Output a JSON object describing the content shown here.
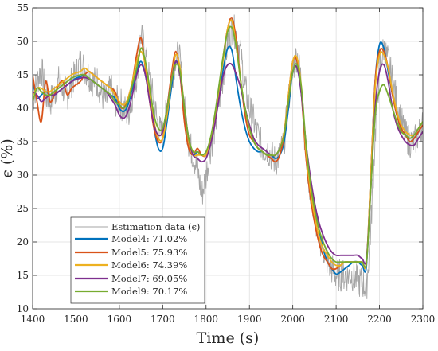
{
  "chart_data": {
    "type": "line",
    "xlabel": "Time (s)",
    "ylabel": "ϵ (%)",
    "xlim": [
      1400,
      2300
    ],
    "ylim": [
      10,
      55
    ],
    "xticks": [
      "1400",
      "1500",
      "1600",
      "1700",
      "1800",
      "1900",
      "2000",
      "2100",
      "2200",
      "2300"
    ],
    "yticks": [
      "10",
      "15",
      "20",
      "25",
      "30",
      "35",
      "40",
      "45",
      "50",
      "55"
    ],
    "grid": true,
    "legend_position": "bottom-left",
    "series": [
      {
        "name": "Estimation data (ϵ)",
        "color": "#a6a6a6",
        "style": "noisy",
        "x": [
          1400,
          1410,
          1420,
          1430,
          1440,
          1450,
          1460,
          1470,
          1480,
          1490,
          1500,
          1510,
          1520,
          1530,
          1540,
          1550,
          1560,
          1570,
          1580,
          1590,
          1600,
          1610,
          1620,
          1630,
          1640,
          1650,
          1660,
          1670,
          1680,
          1690,
          1700,
          1710,
          1720,
          1730,
          1740,
          1750,
          1760,
          1770,
          1780,
          1790,
          1800,
          1810,
          1820,
          1830,
          1840,
          1850,
          1860,
          1870,
          1880,
          1890,
          1900,
          1910,
          1920,
          1930,
          1940,
          1950,
          1960,
          1970,
          1980,
          1990,
          2000,
          2010,
          2020,
          2030,
          2040,
          2050,
          2060,
          2070,
          2080,
          2090,
          2100,
          2110,
          2120,
          2130,
          2140,
          2150,
          2160,
          2170,
          2180,
          2190,
          2200,
          2210,
          2220,
          2230,
          2240,
          2250,
          2260,
          2270,
          2280,
          2290,
          2300
        ],
        "y": [
          41,
          44,
          46,
          42,
          41,
          42,
          44,
          43,
          42,
          44,
          45,
          47,
          46,
          45,
          44,
          44,
          42,
          41,
          43,
          41,
          41,
          40,
          39,
          42,
          45,
          51,
          48,
          44,
          41,
          37,
          36,
          40,
          44,
          48,
          47,
          40,
          35,
          33,
          31,
          27,
          30,
          34,
          37,
          41,
          45,
          50,
          52,
          51,
          48,
          43,
          40,
          38,
          36,
          34,
          34,
          33,
          32,
          33,
          35,
          41,
          46,
          48,
          44,
          33,
          28,
          24,
          21,
          19,
          17,
          16,
          15,
          15,
          15,
          15,
          15,
          14,
          14,
          13,
          22,
          36,
          46,
          49,
          47,
          44,
          41,
          38,
          36,
          35,
          35,
          36,
          38
        ]
      },
      {
        "name": "Model4:  71.02%",
        "color": "#0072bd",
        "x": [
          1400,
          1410,
          1420,
          1430,
          1440,
          1450,
          1460,
          1470,
          1480,
          1490,
          1500,
          1510,
          1520,
          1530,
          1540,
          1550,
          1560,
          1570,
          1580,
          1590,
          1600,
          1610,
          1620,
          1630,
          1640,
          1650,
          1660,
          1670,
          1680,
          1690,
          1700,
          1710,
          1720,
          1730,
          1740,
          1750,
          1760,
          1770,
          1780,
          1790,
          1800,
          1810,
          1820,
          1830,
          1840,
          1850,
          1860,
          1870,
          1880,
          1890,
          1900,
          1910,
          1920,
          1930,
          1940,
          1950,
          1960,
          1970,
          1980,
          1990,
          2000,
          2010,
          2020,
          2030,
          2040,
          2050,
          2060,
          2070,
          2080,
          2090,
          2100,
          2110,
          2120,
          2130,
          2140,
          2150,
          2160,
          2170,
          2180,
          2190,
          2200,
          2210,
          2220,
          2230,
          2240,
          2250,
          2260,
          2270,
          2280,
          2290,
          2300
        ],
        "y": [
          44,
          41.5,
          42,
          42.5,
          42,
          42,
          42.5,
          43,
          43.5,
          44,
          44.5,
          44.7,
          45,
          44.5,
          44,
          43.5,
          43,
          42.5,
          42,
          41.5,
          40,
          39.5,
          40.5,
          43,
          45.5,
          47,
          45,
          41.5,
          37,
          34,
          34,
          38,
          43,
          47,
          45,
          39,
          35,
          33,
          33.5,
          33,
          33,
          35,
          38,
          42,
          46,
          49,
          48.5,
          44,
          40,
          37,
          35,
          34,
          33.5,
          33.5,
          33,
          33,
          32.5,
          33,
          35,
          40,
          45.5,
          46,
          42,
          34,
          29,
          25,
          22,
          19,
          17,
          16,
          15.2,
          15.5,
          16,
          16.5,
          17,
          17,
          16.5,
          16.5,
          30,
          44,
          49.5,
          49,
          45.5,
          42,
          39,
          37,
          36,
          35,
          35.5,
          36.5,
          37.5
        ]
      },
      {
        "name": "Model5:  75.93%",
        "color": "#d95319",
        "x": [
          1400,
          1410,
          1420,
          1430,
          1440,
          1450,
          1460,
          1470,
          1480,
          1490,
          1500,
          1510,
          1520,
          1530,
          1540,
          1550,
          1560,
          1570,
          1580,
          1590,
          1600,
          1610,
          1620,
          1630,
          1640,
          1650,
          1660,
          1670,
          1680,
          1690,
          1700,
          1710,
          1720,
          1730,
          1740,
          1750,
          1760,
          1770,
          1780,
          1790,
          1800,
          1810,
          1820,
          1830,
          1840,
          1850,
          1860,
          1870,
          1880,
          1890,
          1900,
          1910,
          1920,
          1930,
          1940,
          1950,
          1960,
          1970,
          1980,
          1990,
          2000,
          2010,
          2020,
          2030,
          2040,
          2050,
          2060,
          2070,
          2080,
          2090,
          2100,
          2110,
          2120,
          2130,
          2140,
          2150,
          2160,
          2170,
          2180,
          2190,
          2200,
          2210,
          2220,
          2230,
          2240,
          2250,
          2260,
          2270,
          2280,
          2290,
          2300
        ],
        "y": [
          45,
          41,
          38,
          44,
          41,
          42,
          43.5,
          44,
          42,
          43,
          43.5,
          44,
          45,
          45.5,
          45,
          44.5,
          44,
          43.5,
          43,
          42.5,
          40.5,
          40,
          41.5,
          44,
          48,
          50.5,
          46,
          41,
          37,
          35,
          35.5,
          40,
          45,
          48.5,
          45,
          38,
          34,
          33,
          34,
          33,
          33,
          35,
          38,
          43,
          48,
          52,
          53.5,
          50,
          44,
          39,
          36,
          35,
          34,
          33.5,
          33,
          32.5,
          32,
          33,
          36,
          42,
          47,
          47,
          42,
          33,
          27,
          23,
          20,
          18,
          17,
          16,
          16,
          16.5,
          17,
          17,
          17,
          17,
          17,
          17,
          30,
          44,
          48.5,
          48.5,
          46,
          42,
          39,
          37,
          36,
          35,
          35.5,
          36.5,
          37.5
        ]
      },
      {
        "name": "Model6:  74.39%",
        "color": "#edb120",
        "x": [
          1400,
          1410,
          1420,
          1430,
          1440,
          1450,
          1460,
          1470,
          1480,
          1490,
          1500,
          1510,
          1520,
          1530,
          1540,
          1550,
          1560,
          1570,
          1580,
          1590,
          1600,
          1610,
          1620,
          1630,
          1640,
          1650,
          1660,
          1670,
          1680,
          1690,
          1700,
          1710,
          1720,
          1730,
          1740,
          1750,
          1760,
          1770,
          1780,
          1790,
          1800,
          1810,
          1820,
          1830,
          1840,
          1850,
          1860,
          1870,
          1880,
          1890,
          1900,
          1910,
          1920,
          1930,
          1940,
          1950,
          1960,
          1970,
          1980,
          1990,
          2000,
          2010,
          2020,
          2030,
          2040,
          2050,
          2060,
          2070,
          2080,
          2090,
          2100,
          2110,
          2120,
          2130,
          2140,
          2150,
          2160,
          2170,
          2180,
          2190,
          2200,
          2210,
          2220,
          2230,
          2240,
          2250,
          2260,
          2270,
          2280,
          2290,
          2300
        ],
        "y": [
          42,
          43,
          43,
          42.5,
          42.5,
          43,
          43.5,
          44,
          44.5,
          45,
          45.3,
          45.5,
          46,
          45.5,
          45,
          44.5,
          44,
          43.5,
          43,
          42,
          41,
          40.5,
          41.5,
          44,
          47,
          48.5,
          46.5,
          42,
          38,
          35.5,
          35.5,
          39,
          44,
          48,
          46,
          40,
          35,
          33,
          33,
          33,
          33,
          35,
          38.5,
          43,
          47.5,
          52,
          53,
          49,
          44,
          40,
          37,
          35,
          34,
          33.5,
          33,
          33,
          33,
          34,
          36.5,
          42,
          47,
          47.5,
          43,
          34,
          28,
          24,
          21,
          19,
          18,
          17,
          16.5,
          16.5,
          17,
          17,
          17,
          17,
          17,
          17,
          30,
          43,
          48,
          48,
          46,
          42.5,
          39.5,
          37.5,
          36.5,
          36,
          36,
          37,
          38
        ]
      },
      {
        "name": "Model7:  69.05%",
        "color": "#7e2f8e",
        "x": [
          1400,
          1410,
          1420,
          1430,
          1440,
          1450,
          1460,
          1470,
          1480,
          1490,
          1500,
          1510,
          1520,
          1530,
          1540,
          1550,
          1560,
          1570,
          1580,
          1590,
          1600,
          1610,
          1620,
          1630,
          1640,
          1650,
          1660,
          1670,
          1680,
          1690,
          1700,
          1710,
          1720,
          1730,
          1740,
          1750,
          1760,
          1770,
          1780,
          1790,
          1800,
          1810,
          1820,
          1830,
          1840,
          1850,
          1860,
          1870,
          1880,
          1890,
          1900,
          1910,
          1920,
          1930,
          1940,
          1950,
          1960,
          1970,
          1980,
          1990,
          2000,
          2010,
          2020,
          2030,
          2040,
          2050,
          2060,
          2070,
          2080,
          2090,
          2100,
          2110,
          2120,
          2130,
          2140,
          2150,
          2160,
          2170,
          2180,
          2190,
          2200,
          2210,
          2220,
          2230,
          2240,
          2250,
          2260,
          2270,
          2280,
          2290,
          2300
        ],
        "y": [
          42.5,
          42,
          41,
          41.5,
          42,
          42,
          42.5,
          43,
          43.5,
          44,
          44.3,
          44.5,
          44.6,
          44.4,
          44,
          43.5,
          43,
          42.5,
          41.5,
          40.5,
          39,
          38.5,
          39.5,
          42,
          45,
          46.5,
          45,
          41,
          37.5,
          36,
          36.5,
          40,
          44,
          47,
          45,
          40,
          35.5,
          33,
          32.5,
          32,
          32.5,
          34.5,
          37.5,
          41.5,
          45,
          46.5,
          46.5,
          45,
          43,
          40,
          37.5,
          35.5,
          34.5,
          34,
          33.5,
          33,
          33,
          34,
          36,
          41,
          45.5,
          46,
          42,
          35,
          30,
          26,
          23,
          21,
          19.5,
          18.5,
          18,
          18,
          18,
          18,
          18,
          18,
          17.5,
          17.5,
          28,
          40,
          45.5,
          46.5,
          44,
          40,
          37.5,
          36,
          35,
          34.5,
          34.5,
          35.5,
          36.5
        ]
      },
      {
        "name": "Model9:  70.17%",
        "color": "#77ac30",
        "x": [
          1400,
          1410,
          1420,
          1430,
          1440,
          1450,
          1460,
          1470,
          1480,
          1490,
          1500,
          1510,
          1520,
          1530,
          1540,
          1550,
          1560,
          1570,
          1580,
          1590,
          1600,
          1610,
          1620,
          1630,
          1640,
          1650,
          1660,
          1670,
          1680,
          1690,
          1700,
          1710,
          1720,
          1730,
          1740,
          1750,
          1760,
          1770,
          1780,
          1790,
          1800,
          1810,
          1820,
          1830,
          1840,
          1850,
          1860,
          1870,
          1880,
          1890,
          1900,
          1910,
          1920,
          1930,
          1940,
          1950,
          1960,
          1970,
          1980,
          1990,
          2000,
          2010,
          2020,
          2030,
          2040,
          2050,
          2060,
          2070,
          2080,
          2090,
          2100,
          2110,
          2120,
          2130,
          2140,
          2150,
          2160,
          2170,
          2180,
          2190,
          2200,
          2210,
          2220,
          2230,
          2240,
          2250,
          2260,
          2270,
          2280,
          2290,
          2300
        ],
        "y": [
          41,
          43,
          42.5,
          42,
          42,
          42.5,
          43,
          43.5,
          44,
          44.5,
          44.8,
          45,
          45,
          44.5,
          44,
          43.5,
          43,
          42.5,
          42,
          41,
          40.5,
          40,
          41,
          43.5,
          46,
          49,
          47,
          43,
          39,
          37,
          37,
          40,
          44,
          46.5,
          45.5,
          40,
          35.5,
          33.5,
          33.5,
          33,
          33.5,
          35.5,
          39,
          43.5,
          48,
          51.5,
          52,
          49,
          44,
          40,
          37,
          35,
          34,
          33.5,
          33,
          33,
          33,
          34,
          36,
          41,
          45.5,
          46.5,
          43,
          35,
          29,
          25,
          22,
          20,
          18.5,
          17.5,
          17,
          17,
          17,
          17,
          17,
          17,
          17,
          17,
          28,
          39,
          42.5,
          43.5,
          42,
          40,
          38,
          36.5,
          36,
          35.5,
          36,
          37,
          38
        ]
      }
    ]
  }
}
